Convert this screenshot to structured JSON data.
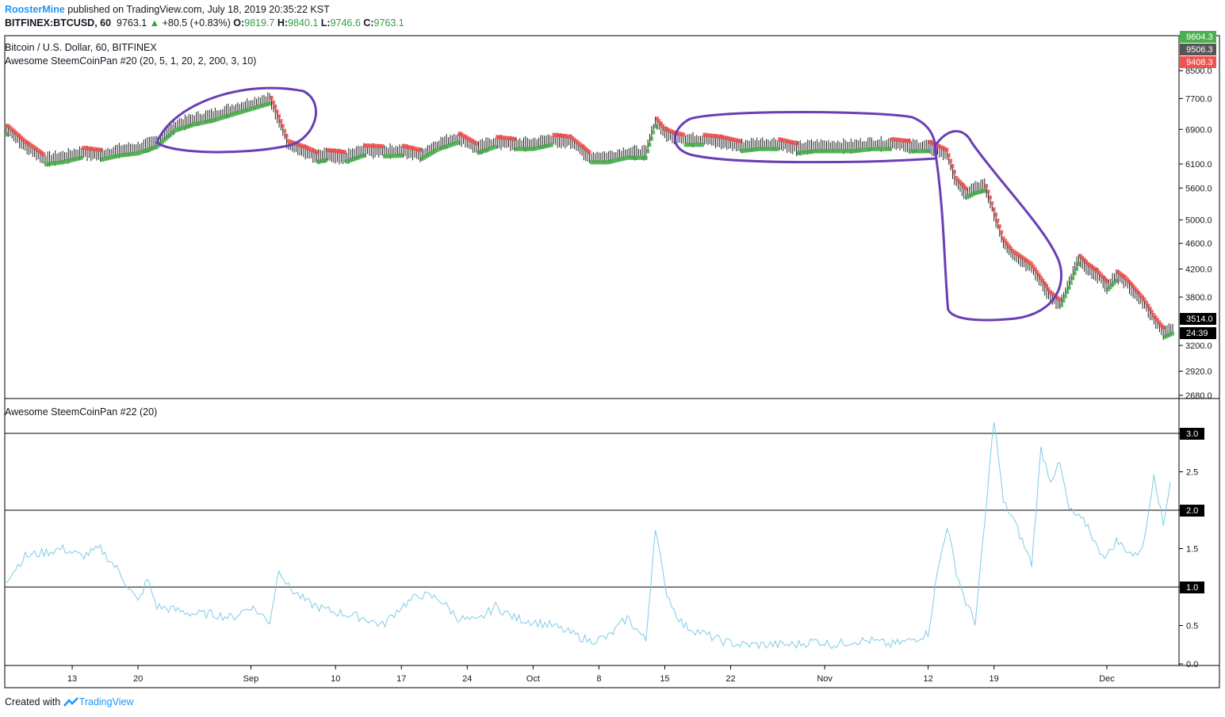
{
  "header": {
    "author": "RoosterMine",
    "published": "published on TradingView.com, July 18, 2019 20:35:22 KST",
    "symbol": "BITFINEX:BTCUSD, 60",
    "last": "9763.1",
    "change": "+80.5 (+0.83%)",
    "o_label": "O:",
    "o_val": "9819.7",
    "h_label": "H:",
    "h_val": "9840.1",
    "l_label": "L:",
    "l_val": "9746.6",
    "c_label": "C:",
    "c_val": "9763.1",
    "pair_title": "Bitcoin / U.S. Dollar, 60, BITFINEX",
    "indicator1": "Awesome SteemCoinPan #20 (20, 5, 1, 20, 2, 200, 3, 10)",
    "indicator2": "Awesome SteemCoinPan #22 (20)"
  },
  "footer": {
    "created": "Created with",
    "brand": "TradingView"
  },
  "colors": {
    "up": "#26a69a",
    "up_green": "#4caf50",
    "down": "#ef5350",
    "indicator": "#7ecbe6",
    "annotation": "#6a3fb5",
    "axis_text": "#131722"
  },
  "chart_data": [
    {
      "type": "line",
      "title": "Bitcoin / U.S. Dollar, 60, BITFINEX",
      "y_scale": "log",
      "y_ticks": [
        2680,
        2920,
        3200,
        3800,
        4200,
        4600,
        5000,
        5600,
        6100,
        6900,
        7700,
        8500
      ],
      "y_tick_labels": [
        "2680.0",
        "2920.0",
        "3200.0",
        "3800.0",
        "4200.0",
        "4600.0",
        "5000.0",
        "5600.0",
        "6100.0",
        "6900.0",
        "7700.0",
        "8500.0"
      ],
      "price_badges": [
        {
          "label": "9604.3",
          "color": "#4caf50"
        },
        {
          "label": "9506.3",
          "color": "#555555"
        },
        {
          "label": "9408.3",
          "color": "#ef5350"
        },
        {
          "label": "3514.0",
          "color": "#000000"
        },
        {
          "label": "24:39",
          "color": "#000000"
        }
      ],
      "x_tick_labels": [
        "13",
        "20",
        "Sep",
        "10",
        "17",
        "24",
        "Oct",
        "8",
        "15",
        "22",
        "Nov",
        "12",
        "19",
        "Dec"
      ],
      "x_tick_days": [
        13,
        20,
        32,
        41,
        48,
        55,
        62,
        69,
        76,
        83,
        93,
        104,
        111,
        123
      ],
      "series": [
        {
          "values_x_days": [
            6,
            8,
            10,
            12,
            14,
            16,
            18,
            20,
            22,
            24,
            26,
            28,
            30,
            32,
            34,
            36,
            38,
            39,
            40,
            42,
            44,
            46,
            48,
            50,
            52,
            54,
            56,
            58,
            60,
            62,
            64,
            66,
            68,
            70,
            72,
            74,
            75,
            76,
            77,
            78,
            80,
            82,
            84,
            86,
            88,
            90,
            92,
            94,
            96,
            98,
            100,
            102,
            104,
            106,
            107,
            108,
            109,
            110,
            111,
            112,
            113,
            114,
            115,
            116,
            117,
            118,
            119,
            120,
            121,
            122,
            123,
            124,
            125,
            126,
            127,
            128,
            129,
            130
          ],
          "values_y": [
            6900,
            6500,
            6200,
            6250,
            6350,
            6300,
            6400,
            6450,
            6600,
            7000,
            7150,
            7250,
            7400,
            7550,
            7700,
            6500,
            6350,
            6250,
            6300,
            6250,
            6400,
            6380,
            6400,
            6300,
            6550,
            6700,
            6450,
            6600,
            6550,
            6550,
            6650,
            6600,
            6250,
            6250,
            6350,
            6350,
            7100,
            6800,
            6700,
            6650,
            6650,
            6600,
            6500,
            6550,
            6550,
            6450,
            6500,
            6500,
            6500,
            6550,
            6550,
            6500,
            6500,
            6300,
            5700,
            5500,
            5600,
            5650,
            5100,
            4600,
            4400,
            4300,
            4200,
            4000,
            3800,
            3700,
            4000,
            4350,
            4200,
            4100,
            3950,
            4100,
            4000,
            3850,
            3700,
            3500,
            3350,
            3400
          ]
        }
      ],
      "annotations": [
        {
          "shape": "ellipse",
          "days": [
            22,
            38
          ]
        },
        {
          "shape": "ellipse",
          "days": [
            77,
            104
          ]
        },
        {
          "shape": "loop",
          "days": [
            104,
            123
          ]
        }
      ]
    },
    {
      "type": "line",
      "title": "Awesome SteemCoinPan #22 (20)",
      "ylim": [
        0,
        3.2
      ],
      "y_ticks": [
        0.0,
        0.5,
        1.0,
        1.5,
        2.0,
        2.5,
        3.0
      ],
      "y_tick_labels": [
        "0.0",
        "0.5",
        "1.0",
        "1.5",
        "2.0",
        "2.5",
        "3.0"
      ],
      "hlines": [
        1.0,
        2.0,
        3.0
      ],
      "series": [
        {
          "x_days": [
            6,
            8,
            10,
            12,
            14,
            16,
            18,
            20,
            21,
            22,
            24,
            26,
            28,
            30,
            32,
            34,
            35,
            36,
            37,
            38,
            40,
            42,
            44,
            46,
            48,
            50,
            52,
            54,
            56,
            58,
            60,
            62,
            64,
            66,
            68,
            70,
            72,
            74,
            75,
            76,
            77,
            78,
            80,
            82,
            84,
            86,
            88,
            90,
            92,
            94,
            96,
            98,
            100,
            102,
            104,
            105,
            106,
            107,
            108,
            109,
            110,
            111,
            112,
            113,
            114,
            115,
            116,
            117,
            118,
            119,
            120,
            121,
            122,
            123,
            124,
            125,
            126,
            127,
            128,
            129,
            130
          ],
          "values": [
            1.1,
            1.4,
            1.45,
            1.5,
            1.4,
            1.5,
            1.2,
            0.8,
            1.1,
            0.75,
            0.7,
            0.65,
            0.65,
            0.6,
            0.75,
            0.55,
            1.25,
            1.0,
            0.9,
            0.8,
            0.7,
            0.65,
            0.6,
            0.5,
            0.75,
            0.9,
            0.85,
            0.6,
            0.55,
            0.75,
            0.6,
            0.55,
            0.5,
            0.4,
            0.3,
            0.35,
            0.6,
            0.3,
            1.8,
            1.0,
            0.7,
            0.5,
            0.4,
            0.3,
            0.25,
            0.25,
            0.25,
            0.25,
            0.3,
            0.25,
            0.3,
            0.3,
            0.25,
            0.3,
            0.4,
            1.2,
            1.8,
            1.2,
            0.8,
            0.55,
            1.8,
            3.2,
            2.1,
            1.9,
            1.6,
            1.3,
            2.8,
            2.4,
            2.6,
            2.0,
            1.9,
            1.8,
            1.5,
            1.4,
            1.6,
            1.5,
            1.4,
            1.6,
            2.5,
            1.8,
            2.6
          ]
        }
      ]
    }
  ]
}
